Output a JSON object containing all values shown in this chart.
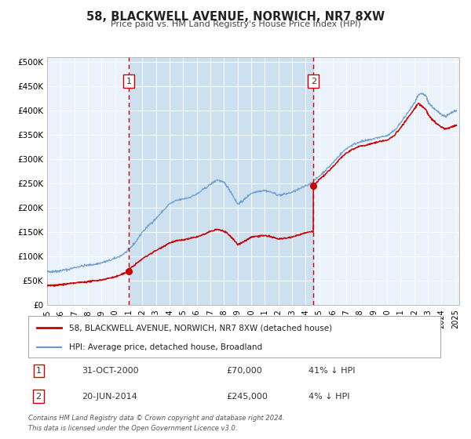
{
  "title": "58, BLACKWELL AVENUE, NORWICH, NR7 8XW",
  "subtitle": "Price paid vs. HM Land Registry's House Price Index (HPI)",
  "xlim": [
    1995.0,
    2025.3
  ],
  "ylim": [
    0,
    510000
  ],
  "yticks": [
    0,
    50000,
    100000,
    150000,
    200000,
    250000,
    300000,
    350000,
    400000,
    450000,
    500000
  ],
  "ytick_labels": [
    "£0",
    "£50K",
    "£100K",
    "£150K",
    "£200K",
    "£250K",
    "£300K",
    "£350K",
    "£400K",
    "£450K",
    "£500K"
  ],
  "xticks": [
    1995,
    1996,
    1997,
    1998,
    1999,
    2000,
    2001,
    2002,
    2003,
    2004,
    2005,
    2006,
    2007,
    2008,
    2009,
    2010,
    2011,
    2012,
    2013,
    2014,
    2015,
    2016,
    2017,
    2018,
    2019,
    2020,
    2021,
    2022,
    2023,
    2024,
    2025
  ],
  "fig_bg_color": "#ffffff",
  "plot_bg_color": "#eaf2fb",
  "shaded_region": [
    2001.0,
    2014.58
  ],
  "shaded_color": "#cce0f0",
  "event1_x": 2001.0,
  "event1_label": "1",
  "event1_y_marker": 70000,
  "event2_x": 2014.58,
  "event2_label": "2",
  "event2_y_marker": 245000,
  "red_line_color": "#cc0000",
  "blue_line_color": "#6699cc",
  "legend_label_red": "58, BLACKWELL AVENUE, NORWICH, NR7 8XW (detached house)",
  "legend_label_blue": "HPI: Average price, detached house, Broadland",
  "note1_label": "1",
  "note1_date": "31-OCT-2000",
  "note1_price": "£70,000",
  "note1_hpi": "41% ↓ HPI",
  "note2_label": "2",
  "note2_date": "20-JUN-2014",
  "note2_price": "£245,000",
  "note2_hpi": "4% ↓ HPI",
  "footer_line1": "Contains HM Land Registry data © Crown copyright and database right 2024.",
  "footer_line2": "This data is licensed under the Open Government Licence v3.0."
}
